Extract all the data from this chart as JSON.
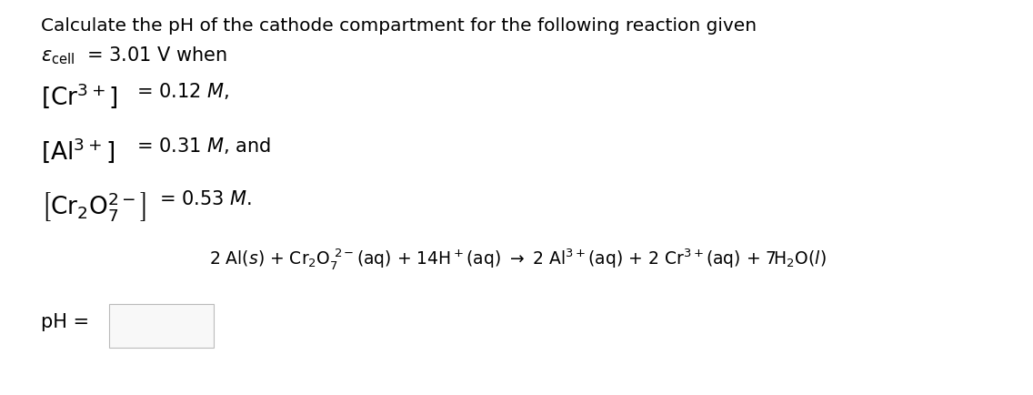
{
  "bg_color": "#ffffff",
  "text_color": "#000000",
  "title": "Calculate the pH of the cathode compartment for the following reaction given",
  "font_size_title": 14.5,
  "font_size_body": 15,
  "font_size_reaction": 13.5
}
